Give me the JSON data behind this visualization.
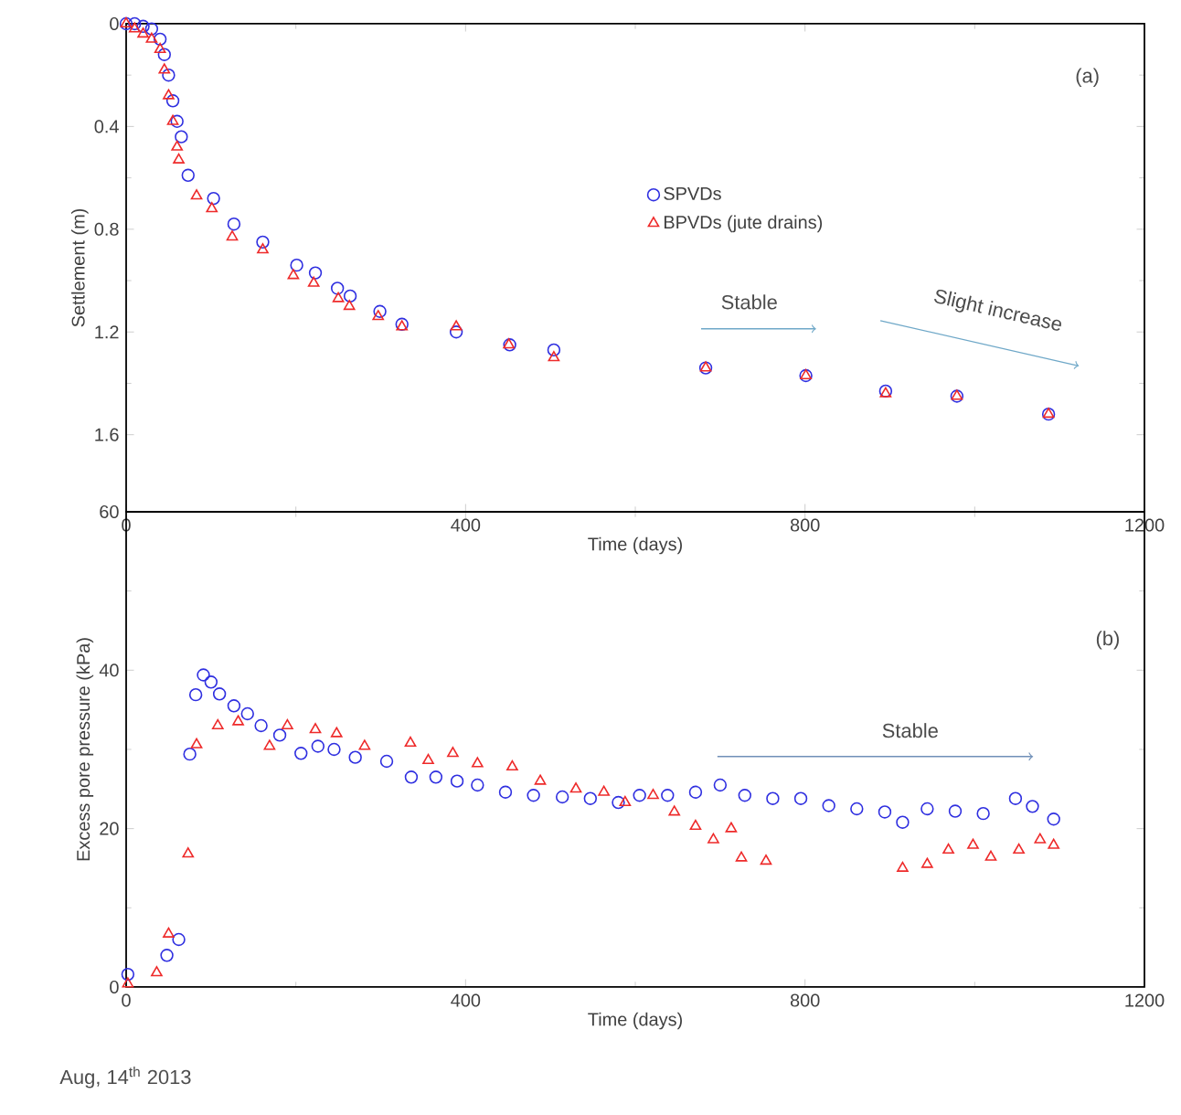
{
  "chart_data": [
    {
      "type": "scatter",
      "xlabel": "Time (days)",
      "ylabel": "Settlement (m)",
      "xlim": [
        0,
        1200
      ],
      "ylim": [
        1.9,
        0
      ],
      "xticks": [
        0,
        400,
        800,
        1200
      ],
      "yticks": [
        0,
        0.4,
        0.8,
        1.2,
        1.6
      ],
      "legend": "center",
      "annotations": [
        "(a)",
        "Stable",
        "Slight increase"
      ],
      "series": [
        {
          "name": "SPVDs",
          "color": "#2f2fe0",
          "marker": "circle",
          "x": [
            0,
            10,
            20,
            30,
            40,
            45,
            50,
            55,
            60,
            65,
            73,
            103,
            127,
            161,
            201,
            223,
            249,
            264,
            299,
            325,
            389,
            452,
            504,
            683,
            801,
            895,
            979,
            1087
          ],
          "values": [
            0,
            0,
            0.01,
            0.02,
            0.06,
            0.12,
            0.2,
            0.3,
            0.38,
            0.44,
            0.59,
            0.68,
            0.78,
            0.85,
            0.94,
            0.97,
            1.03,
            1.06,
            1.12,
            1.17,
            1.2,
            1.25,
            1.27,
            1.34,
            1.37,
            1.43,
            1.45,
            1.52
          ]
        },
        {
          "name": "BPVDs (jute drains)",
          "color": "#ee2a2a",
          "marker": "triangle",
          "x": [
            0,
            10,
            20,
            30,
            40,
            45,
            50,
            55,
            60,
            62,
            83,
            101,
            125,
            161,
            197,
            221,
            250,
            263,
            297,
            325,
            389,
            451,
            504,
            683,
            801,
            895,
            979,
            1087
          ],
          "values": [
            0,
            0.02,
            0.04,
            0.06,
            0.1,
            0.18,
            0.28,
            0.38,
            0.48,
            0.53,
            0.67,
            0.72,
            0.83,
            0.88,
            0.98,
            1.01,
            1.07,
            1.1,
            1.14,
            1.18,
            1.18,
            1.25,
            1.3,
            1.34,
            1.37,
            1.44,
            1.45,
            1.52
          ]
        }
      ]
    },
    {
      "type": "scatter",
      "xlabel": "Time (days)",
      "ylabel": "Excess pore pressure (kPa)",
      "xlim": [
        0,
        1200
      ],
      "ylim": [
        0,
        60
      ],
      "xticks": [
        0,
        400,
        800,
        1200
      ],
      "yticks": [
        0,
        20,
        40,
        60
      ],
      "annotations": [
        "(b)",
        "Stable",
        "Aug, 14$^{th}$ 2013"
      ],
      "series": [
        {
          "color": "#2f2fe0",
          "marker": "circle",
          "x": [
            2,
            48,
            62,
            75,
            82,
            91,
            100,
            110,
            127,
            143,
            159,
            181,
            206,
            226,
            245,
            270,
            307,
            336,
            365,
            390,
            414,
            447,
            480,
            514,
            547,
            580,
            605,
            638,
            671,
            700,
            729,
            762,
            795,
            828,
            861,
            894,
            915,
            944,
            977,
            1010,
            1048,
            1068,
            1093
          ],
          "values": [
            1.6,
            4,
            6,
            29.4,
            36.9,
            39.4,
            38.5,
            37,
            35.5,
            34.5,
            33,
            31.8,
            29.5,
            30.4,
            30,
            29,
            28.5,
            26.5,
            26.5,
            26,
            25.5,
            24.6,
            24.2,
            24,
            23.8,
            23.3,
            24.2,
            24.2,
            24.6,
            25.5,
            24.2,
            23.8,
            23.8,
            22.9,
            22.5,
            22.1,
            20.8,
            22.5,
            22.2,
            21.9,
            23.8,
            22.8,
            21.2
          ]
        },
        {
          "color": "#ee2a2a",
          "marker": "triangle",
          "x": [
            2,
            36,
            50,
            73,
            83,
            108,
            132,
            169,
            190,
            223,
            248,
            281,
            335,
            356,
            385,
            414,
            455,
            488,
            530,
            563,
            588,
            621,
            646,
            671,
            692,
            713,
            725,
            754,
            915,
            944,
            969,
            998,
            1019,
            1052,
            1077,
            1093
          ],
          "values": [
            0.4,
            1.8,
            6.7,
            16.8,
            30.6,
            33,
            33.5,
            30.4,
            33,
            32.5,
            32,
            30.4,
            30.8,
            28.6,
            29.5,
            28.2,
            27.8,
            26,
            25,
            24.6,
            23.3,
            24.2,
            22.1,
            20.3,
            18.6,
            20,
            16.3,
            15.9,
            15,
            15.5,
            17.3,
            17.9,
            16.4,
            17.3,
            18.6,
            17.9
          ]
        }
      ]
    }
  ]
}
